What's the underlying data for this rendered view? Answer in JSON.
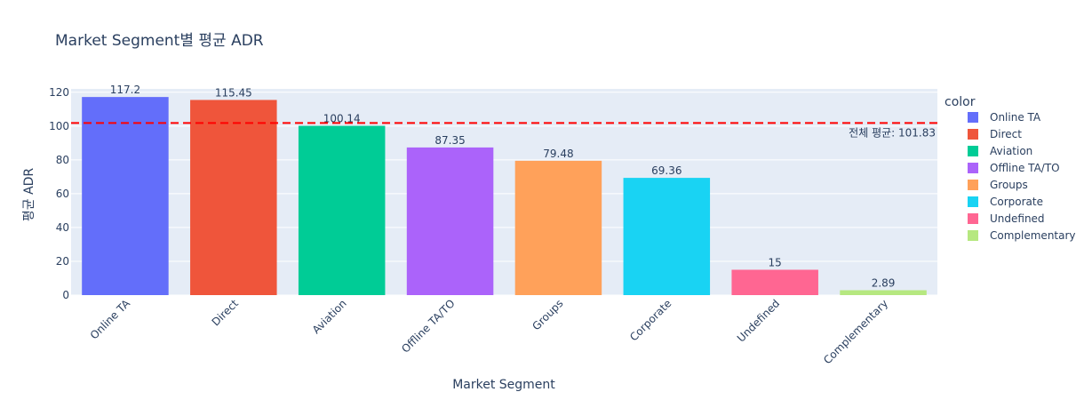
{
  "chart_data": {
    "type": "bar",
    "title": "Market Segment별 평균 ADR",
    "xlabel": "Market Segment",
    "ylabel": "평균 ADR",
    "ylim": [
      0,
      122
    ],
    "yticks": [
      0,
      20,
      40,
      60,
      80,
      100,
      120
    ],
    "categories": [
      "Online TA",
      "Direct",
      "Aviation",
      "Offline TA/TO",
      "Groups",
      "Corporate",
      "Undefined",
      "Complementary"
    ],
    "values": [
      117.2,
      115.45,
      100.14,
      87.35,
      79.48,
      69.36,
      15,
      2.89
    ],
    "value_labels": [
      "117.2",
      "115.45",
      "100.14",
      "87.35",
      "79.48",
      "69.36",
      "15",
      "2.89"
    ],
    "colors": [
      "#636efa",
      "#EF553B",
      "#00cc96",
      "#ab63fa",
      "#FFA15A",
      "#19d3f3",
      "#FF6692",
      "#B6E880"
    ],
    "legend_title": "color",
    "legend_position": "right",
    "grid": true,
    "plot_bgcolor": "#e5ecf6",
    "reference_line": {
      "value": 101.83,
      "color": "#ff0000",
      "style": "dashed",
      "label": "전체 평균: 101.83"
    }
  }
}
